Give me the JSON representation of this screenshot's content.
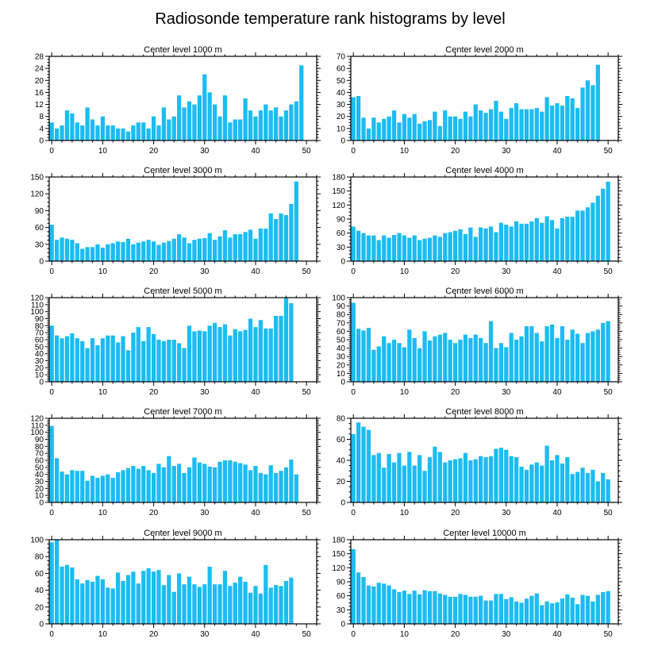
{
  "colors": {
    "bar": "#1cbcf2",
    "axis": "#000000",
    "background": "#ffffff"
  },
  "chart_data": {
    "title": "Radiosonde temperature rank histograms by level",
    "type": "bar",
    "x": [
      0,
      1,
      2,
      3,
      4,
      5,
      6,
      7,
      8,
      9,
      10,
      11,
      12,
      13,
      14,
      15,
      16,
      17,
      18,
      19,
      20,
      21,
      22,
      23,
      24,
      25,
      26,
      27,
      28,
      29,
      30,
      31,
      32,
      33,
      34,
      35,
      36,
      37,
      38,
      39,
      40,
      41,
      42,
      43,
      44,
      45,
      46,
      47,
      48,
      49,
      50,
      51
    ],
    "xlim": [
      -0.5,
      52
    ],
    "xticks": [
      0,
      10,
      20,
      30,
      40,
      50
    ],
    "panels": [
      {
        "title": "Center level 1000 m",
        "yticks": [
          0,
          4,
          8,
          12,
          16,
          20,
          24,
          28
        ],
        "ylim": [
          0,
          28
        ],
        "values": [
          6,
          4,
          5,
          10,
          9,
          6,
          5,
          11,
          7,
          5,
          8,
          5,
          5,
          4,
          4,
          3,
          5,
          6,
          6,
          4,
          8,
          5,
          11,
          7,
          8,
          15,
          11,
          13,
          12,
          15,
          22,
          16,
          12,
          8,
          15,
          6,
          7,
          7,
          14,
          10,
          8,
          10,
          12,
          10,
          11,
          8,
          10,
          12,
          13,
          25,
          0,
          0
        ]
      },
      {
        "title": "Center level 2000 m",
        "yticks": [
          0,
          10,
          20,
          30,
          40,
          50,
          60,
          70
        ],
        "ylim": [
          0,
          70
        ],
        "values": [
          36,
          37,
          19,
          10,
          19,
          15,
          18,
          20,
          25,
          15,
          22,
          19,
          22,
          14,
          16,
          17,
          24,
          12,
          25,
          20,
          20,
          18,
          24,
          20,
          30,
          25,
          23,
          26,
          33,
          24,
          18,
          27,
          31,
          26,
          26,
          26,
          27,
          24,
          36,
          29,
          31,
          29,
          37,
          35,
          27,
          44,
          50,
          46,
          63,
          0,
          0,
          0
        ]
      },
      {
        "title": "Center level 3000 m",
        "yticks": [
          0,
          30,
          60,
          90,
          120,
          150
        ],
        "ylim": [
          0,
          150
        ],
        "values": [
          65,
          38,
          42,
          40,
          38,
          32,
          22,
          25,
          25,
          30,
          24,
          30,
          32,
          35,
          34,
          40,
          30,
          33,
          35,
          38,
          35,
          29,
          33,
          36,
          40,
          48,
          42,
          32,
          38,
          40,
          41,
          50,
          38,
          44,
          55,
          42,
          48,
          48,
          52,
          56,
          40,
          58,
          58,
          85,
          75,
          85,
          82,
          102,
          142,
          0,
          0,
          0
        ]
      },
      {
        "title": "Center level 4000 m",
        "yticks": [
          0,
          30,
          60,
          90,
          120,
          150,
          180
        ],
        "ylim": [
          0,
          180
        ],
        "values": [
          74,
          65,
          60,
          55,
          55,
          45,
          55,
          50,
          56,
          60,
          55,
          50,
          55,
          45,
          48,
          50,
          55,
          52,
          60,
          62,
          65,
          68,
          58,
          72,
          52,
          72,
          70,
          74,
          62,
          82,
          78,
          74,
          85,
          80,
          80,
          85,
          92,
          82,
          96,
          88,
          70,
          92,
          95,
          95,
          108,
          108,
          115,
          125,
          140,
          155,
          170,
          0
        ]
      },
      {
        "title": "Center level 5000 m",
        "yticks": [
          0,
          10,
          20,
          30,
          40,
          50,
          60,
          70,
          80,
          90,
          100,
          110,
          120
        ],
        "ylim": [
          0,
          120
        ],
        "values": [
          80,
          66,
          62,
          65,
          69,
          62,
          58,
          48,
          62,
          52,
          62,
          66,
          66,
          56,
          65,
          45,
          70,
          78,
          58,
          78,
          68,
          60,
          58,
          60,
          60,
          55,
          48,
          80,
          72,
          73,
          72,
          80,
          84,
          78,
          82,
          66,
          75,
          72,
          74,
          90,
          78,
          88,
          76,
          76,
          94,
          94,
          120,
          112,
          0,
          0,
          0,
          0
        ]
      },
      {
        "title": "Center level 6000 m",
        "yticks": [
          0,
          10,
          20,
          30,
          40,
          50,
          60,
          70,
          80,
          90,
          100
        ],
        "ylim": [
          0,
          100
        ],
        "values": [
          94,
          63,
          61,
          64,
          38,
          42,
          54,
          46,
          50,
          46,
          41,
          62,
          52,
          40,
          60,
          49,
          54,
          56,
          58,
          50,
          46,
          50,
          56,
          52,
          56,
          52,
          46,
          72,
          40,
          46,
          41,
          58,
          50,
          54,
          66,
          66,
          58,
          48,
          66,
          68,
          52,
          66,
          50,
          62,
          57,
          46,
          58,
          60,
          62,
          70,
          72,
          0
        ]
      },
      {
        "title": "Center level 7000 m",
        "yticks": [
          0,
          10,
          20,
          30,
          40,
          50,
          60,
          70,
          80,
          90,
          100,
          110,
          120
        ],
        "ylim": [
          0,
          120
        ],
        "values": [
          109,
          63,
          44,
          40,
          46,
          45,
          45,
          31,
          38,
          35,
          38,
          40,
          35,
          43,
          46,
          49,
          52,
          48,
          52,
          46,
          42,
          55,
          50,
          66,
          52,
          55,
          42,
          50,
          64,
          57,
          55,
          51,
          50,
          58,
          60,
          60,
          58,
          56,
          54,
          46,
          52,
          42,
          40,
          53,
          42,
          45,
          50,
          61,
          40,
          0,
          0,
          0
        ]
      },
      {
        "title": "Center level 8000 m",
        "yticks": [
          0,
          20,
          40,
          60,
          80
        ],
        "ylim": [
          0,
          80
        ],
        "values": [
          65,
          76,
          72,
          69,
          45,
          47,
          33,
          46,
          38,
          47,
          35,
          48,
          35,
          45,
          30,
          43,
          53,
          48,
          38,
          40,
          41,
          42,
          47,
          40,
          41,
          44,
          43,
          44,
          51,
          52,
          50,
          44,
          43,
          34,
          31,
          36,
          38,
          35,
          54,
          40,
          45,
          37,
          43,
          27,
          29,
          33,
          28,
          31,
          20,
          28,
          22,
          0
        ]
      },
      {
        "title": "Center level 9000 m",
        "yticks": [
          0,
          20,
          40,
          60,
          80,
          100
        ],
        "ylim": [
          0,
          100
        ],
        "values": [
          97,
          100,
          68,
          70,
          67,
          53,
          48,
          52,
          50,
          57,
          53,
          43,
          42,
          61,
          51,
          58,
          62,
          48,
          63,
          66,
          62,
          64,
          46,
          58,
          38,
          60,
          47,
          56,
          47,
          44,
          47,
          68,
          47,
          47,
          63,
          45,
          49,
          56,
          50,
          37,
          45,
          36,
          70,
          43,
          46,
          45,
          51,
          55,
          0,
          0,
          0,
          0
        ]
      },
      {
        "title": "Center level 10000 m",
        "yticks": [
          0,
          30,
          60,
          90,
          120,
          150,
          180
        ],
        "ylim": [
          0,
          180
        ],
        "values": [
          160,
          110,
          100,
          82,
          80,
          88,
          86,
          82,
          74,
          68,
          71,
          64,
          71,
          63,
          72,
          70,
          70,
          65,
          62,
          58,
          58,
          64,
          62,
          58,
          58,
          60,
          50,
          50,
          64,
          64,
          53,
          57,
          48,
          45,
          54,
          60,
          65,
          40,
          48,
          44,
          46,
          54,
          63,
          56,
          42,
          62,
          60,
          48,
          62,
          68,
          70,
          0
        ]
      }
    ]
  }
}
